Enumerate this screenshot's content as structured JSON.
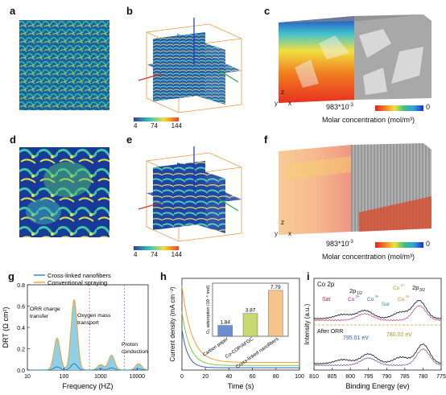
{
  "labels": {
    "a": "a",
    "b": "b",
    "c": "c",
    "d": "d",
    "e": "e",
    "f": "f",
    "g": "g",
    "h": "h",
    "i": "i"
  },
  "colorbar_b": {
    "ticks": [
      "4",
      "74",
      "144"
    ]
  },
  "colorbar_e": {
    "ticks": [
      "4",
      "74",
      "144"
    ]
  },
  "colorbar_c": {
    "left": "983*10",
    "left_sup": "-3",
    "right": "0",
    "title": "Molar concentration (mol/m³)"
  },
  "colorbar_f": {
    "left": "983*10",
    "left_sup": "-3",
    "right": "0",
    "title": "Molar concentration (mol/m³)"
  },
  "axes_c": {
    "x": "x",
    "y": "y",
    "z": "z"
  },
  "axes_f": {
    "x": "x",
    "y": "y",
    "z": "z"
  },
  "chart_data": [
    {
      "type": "area",
      "panel": "g",
      "xlabel": "Frequency (HZ)",
      "ylabel": "DRT (Ω cm²)",
      "xscale": "log",
      "xlim": [
        10,
        20000
      ],
      "ylim": [
        0,
        0.8
      ],
      "xticks": [
        "10",
        "100",
        "1000",
        "10000"
      ],
      "yticks": [
        "0.0",
        "0.2",
        "0.4",
        "0.6",
        "0.8"
      ],
      "series": [
        {
          "name": "Cross-linked nanofibers",
          "color": "#2a7fb8",
          "peaks": [
            [
              65,
              0.03
            ],
            [
              190,
              0.06
            ],
            [
              1000,
              0.01
            ],
            [
              2000,
              0.02
            ],
            [
              11000,
              0.01
            ]
          ]
        },
        {
          "name": "Conventional spraying",
          "color": "#f0a030",
          "peaks": [
            [
              65,
              0.3
            ],
            [
              190,
              0.66
            ],
            [
              1000,
              0.05
            ],
            [
              2000,
              0.14
            ],
            [
              11000,
              0.06
            ]
          ]
        }
      ],
      "annotations": [
        {
          "text": "ORR charge",
          "text2": "transfer"
        },
        {
          "text": "Oxygen mass",
          "text2": "transport"
        },
        {
          "text": "Proton",
          "text2": "conduction"
        }
      ]
    },
    {
      "type": "line",
      "panel": "h",
      "xlabel": "Time (s)",
      "ylabel": "Current density (mA cm⁻²)",
      "xlim": [
        0,
        100
      ],
      "xticks": [
        "0",
        "20",
        "40",
        "60",
        "80",
        "100"
      ],
      "inset": {
        "type": "bar",
        "ylabel": "O₂ adsorption (10⁻⁶ mol)",
        "categories": [
          "Carbon paper",
          "Co-COP/AFGC",
          "Cross-linked nanofibers"
        ],
        "values": [
          1.84,
          3.87,
          7.79
        ],
        "value_labels": [
          "1.84",
          "3.87",
          "7.79"
        ],
        "colors": [
          "#6b8fd6",
          "#c8d870",
          "#f4c48a"
        ]
      }
    },
    {
      "type": "line",
      "panel": "i",
      "xlabel": "Binding Energy (ev)",
      "ylabel": "Intensity (a.u.)",
      "xlim": [
        810,
        775
      ],
      "xticks": [
        "810",
        "805",
        "800",
        "795",
        "790",
        "785",
        "780",
        "775"
      ],
      "annotations": [
        "Co 2p",
        "Sat",
        "2p",
        "1/2",
        "Co",
        "2+",
        "Co",
        "3+",
        "Sat",
        "Co",
        "2+",
        "2p",
        "3/2",
        "Co",
        "3+",
        "After ORR",
        "795.01 eV",
        "780.02 eV"
      ]
    }
  ]
}
